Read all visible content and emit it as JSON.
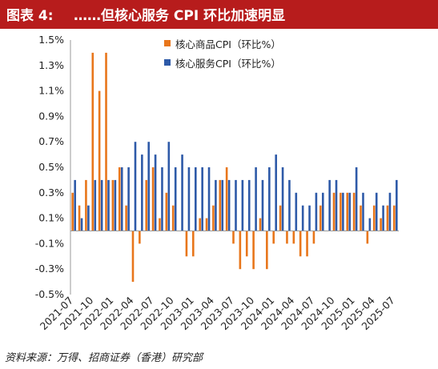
{
  "header": {
    "label": "图表 4:",
    "title": "……但核心服务 CPI 环比加速明显"
  },
  "source": "资料来源：万得、招商证券（香港）研究部",
  "colors": {
    "goods": "#e8761b",
    "services": "#2e5aa8",
    "header_bg": "#b71c1c"
  },
  "chart_data": {
    "type": "bar",
    "title": "",
    "xlabel": "",
    "ylabel": "",
    "ylim": [
      -0.5,
      1.5
    ],
    "yticks": [
      "1.5%",
      "1.3%",
      "1.1%",
      "0.9%",
      "0.7%",
      "0.5%",
      "0.3%",
      "0.1%",
      "-0.1%",
      "-0.3%",
      "-0.5%"
    ],
    "ytick_values": [
      1.5,
      1.3,
      1.1,
      0.9,
      0.7,
      0.5,
      0.3,
      0.1,
      -0.1,
      -0.3,
      -0.5
    ],
    "xtick_labels": [
      "2021-07",
      "2021-10",
      "2022-01",
      "2022-04",
      "2022-07",
      "2022-10",
      "2023-01",
      "2023-04",
      "2023-07",
      "2023-10",
      "2024-01",
      "2024-04",
      "2024-07",
      "2024-10",
      "2025-01",
      "2025-04",
      "2025-07"
    ],
    "legend_position": "top",
    "categories": [
      "2021-07",
      "2021-08",
      "2021-09",
      "2021-10",
      "2021-11",
      "2021-12",
      "2022-01",
      "2022-02",
      "2022-03",
      "2022-04",
      "2022-05",
      "2022-06",
      "2022-07",
      "2022-08",
      "2022-09",
      "2022-10",
      "2022-11",
      "2022-12",
      "2023-01",
      "2023-02",
      "2023-03",
      "2023-04",
      "2023-05",
      "2023-06",
      "2023-07",
      "2023-08",
      "2023-09",
      "2023-10",
      "2023-11",
      "2023-12",
      "2024-01",
      "2024-02",
      "2024-03",
      "2024-04",
      "2024-05",
      "2024-06",
      "2024-07",
      "2024-08",
      "2024-09",
      "2024-10",
      "2024-11",
      "2024-12",
      "2025-01",
      "2025-02",
      "2025-03",
      "2025-04",
      "2025-05",
      "2025-06",
      "2025-07"
    ],
    "series": [
      {
        "name": "核心商品CPI（环比%）",
        "color": "#e8761b",
        "values": [
          0.3,
          0.2,
          0.4,
          1.4,
          1.1,
          1.4,
          0.4,
          0.5,
          0.2,
          -0.4,
          -0.1,
          0.4,
          0.5,
          0.1,
          0.3,
          0.2,
          0.0,
          -0.2,
          -0.2,
          0.1,
          0.1,
          0.2,
          0.4,
          0.5,
          -0.1,
          -0.3,
          -0.2,
          -0.3,
          0.1,
          -0.3,
          -0.1,
          0.2,
          -0.1,
          -0.1,
          -0.2,
          -0.2,
          -0.1,
          0.2,
          0.0,
          0.3,
          0.3,
          0.3,
          0.3,
          0.2,
          -0.1,
          0.2,
          0.1,
          0.2,
          0.2
        ]
      },
      {
        "name": "核心服务CPI（环比%）",
        "color": "#2e5aa8",
        "values": [
          0.4,
          0.1,
          0.2,
          0.4,
          0.4,
          0.4,
          0.4,
          0.5,
          0.5,
          0.7,
          0.6,
          0.7,
          0.6,
          0.5,
          0.7,
          0.5,
          0.6,
          0.5,
          0.5,
          0.5,
          0.5,
          0.4,
          0.4,
          0.4,
          0.4,
          0.4,
          0.4,
          0.5,
          0.4,
          0.5,
          0.6,
          0.5,
          0.4,
          0.3,
          0.2,
          0.2,
          0.3,
          0.3,
          0.4,
          0.4,
          0.3,
          0.3,
          0.5,
          0.3,
          0.1,
          0.3,
          0.2,
          0.3,
          0.4
        ]
      }
    ]
  }
}
